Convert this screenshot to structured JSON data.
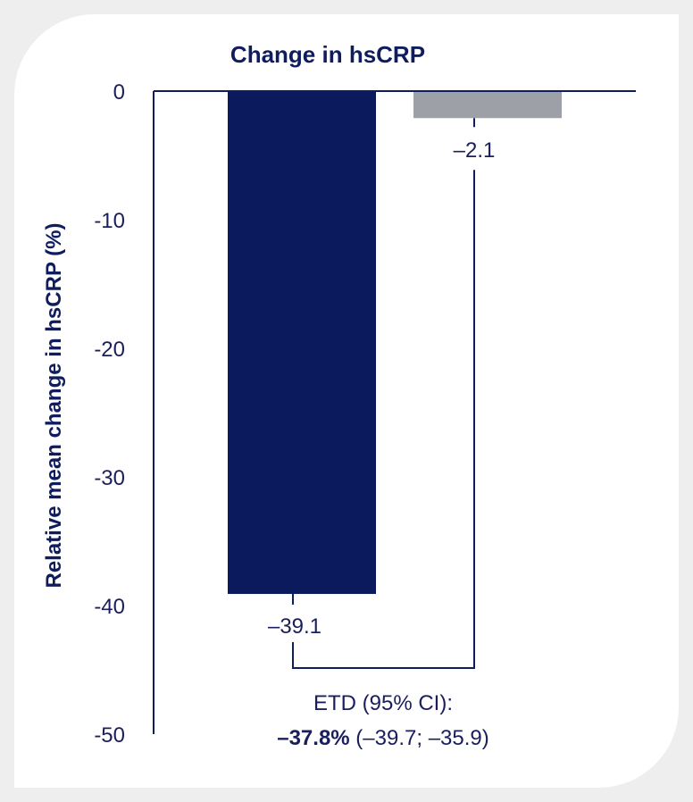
{
  "chart_data": {
    "type": "bar",
    "title": "Change in hsCRP",
    "ylabel": "Relative mean change in hsCRP (%)",
    "xlabel": "",
    "ylim": [
      -50,
      0
    ],
    "yticks": [
      "0",
      "-10",
      "-20",
      "-30",
      "-40",
      "-50"
    ],
    "ytick_values": [
      0,
      -10,
      -20,
      -30,
      -40,
      -50
    ],
    "categories": [
      "",
      ""
    ],
    "values": [
      -39.1,
      -2.1
    ],
    "value_labels": [
      "–39.1",
      "–2.1"
    ],
    "colors": [
      "#0a1a5c",
      "#9ea0a8"
    ],
    "grid": false,
    "annotation": {
      "line1": "ETD (95% CI):",
      "bold": "–37.8%",
      "rest": " (–39.7; –35.9)"
    }
  },
  "colors": {
    "axis": "#0f1d5e",
    "text": "#1a1f5c",
    "background": "#eeeeee",
    "card": "#ffffff"
  }
}
